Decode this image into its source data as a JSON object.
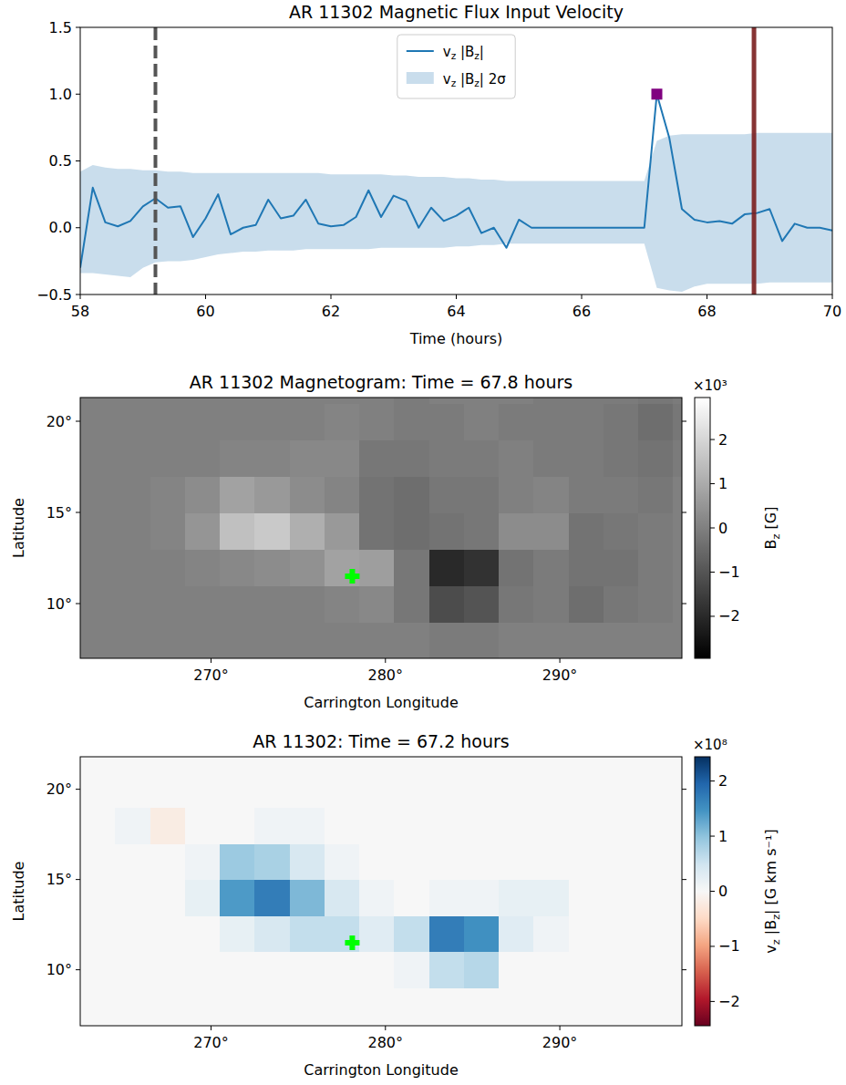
{
  "chart_data": [
    {
      "type": "line",
      "title": "AR 11302 Magnetic Flux Input Velocity",
      "xlabel": "Time (hours)",
      "x": [
        58,
        58.2,
        58.4,
        58.6,
        58.8,
        59,
        59.2,
        59.4,
        59.6,
        59.8,
        60,
        60.2,
        60.4,
        60.6,
        60.8,
        61,
        61.2,
        61.4,
        61.6,
        61.8,
        62,
        62.2,
        62.4,
        62.6,
        62.8,
        63,
        63.2,
        63.4,
        63.6,
        63.8,
        64,
        64.2,
        64.4,
        64.6,
        64.8,
        65,
        65.2,
        65.4,
        65.6,
        65.8,
        66,
        66.2,
        66.4,
        66.6,
        66.8,
        67,
        67.2,
        67.4,
        67.6,
        67.8,
        68,
        68.2,
        68.4,
        68.6,
        68.8,
        69,
        69.2,
        69.4,
        69.6,
        69.8,
        70
      ],
      "xlim": [
        58,
        70
      ],
      "ylim": [
        -0.5,
        1.5
      ],
      "xticks": [
        58,
        60,
        62,
        64,
        66,
        68,
        70
      ],
      "yticks": [
        {
          "value": -0.5,
          "label": "−0.5"
        },
        {
          "value": 0,
          "label": "0.0"
        },
        {
          "value": 0.5,
          "label": "0.5"
        },
        {
          "value": 1,
          "label": "1.0"
        },
        {
          "value": 1.5,
          "label": "1.5"
        }
      ],
      "grid": false,
      "legend": "upper center",
      "series": [
        {
          "name": "vz |Bz|",
          "type": "line",
          "color": "#1f77b4",
          "values": [
            -0.3,
            0.3,
            0.04,
            0.01,
            0.05,
            0.16,
            0.22,
            0.15,
            0.16,
            -0.07,
            0.07,
            0.25,
            -0.05,
            0,
            0.02,
            0.21,
            0.07,
            0.09,
            0.21,
            0.03,
            0.01,
            0.02,
            0.08,
            0.28,
            0.08,
            0.24,
            0.2,
            0,
            0.15,
            0.05,
            0.09,
            0.15,
            -0.04,
            0,
            -0.15,
            0.06,
            0,
            0,
            0,
            0,
            0,
            0,
            0,
            0,
            0,
            0,
            1,
            0.67,
            0.14,
            0.06,
            0.04,
            0.05,
            0.03,
            0.1,
            0.11,
            0.14,
            -0.1,
            0.03,
            0,
            0,
            -0.02
          ]
        },
        {
          "name": "vz |Bz| 2σ",
          "type": "band",
          "color": "#c9ddec",
          "upper": [
            0.42,
            0.47,
            0.45,
            0.44,
            0.44,
            0.43,
            0.43,
            0.42,
            0.42,
            0.41,
            0.41,
            0.41,
            0.41,
            0.41,
            0.41,
            0.41,
            0.41,
            0.41,
            0.41,
            0.41,
            0.4,
            0.4,
            0.4,
            0.4,
            0.4,
            0.39,
            0.39,
            0.38,
            0.38,
            0.38,
            0.37,
            0.37,
            0.36,
            0.36,
            0.35,
            0.35,
            0.35,
            0.35,
            0.35,
            0.35,
            0.35,
            0.35,
            0.35,
            0.35,
            0.35,
            0.35,
            0.65,
            0.69,
            0.7,
            0.7,
            0.7,
            0.7,
            0.7,
            0.7,
            0.71,
            0.71,
            0.71,
            0.71,
            0.71,
            0.71,
            0.71
          ],
          "lower": [
            -0.34,
            -0.34,
            -0.35,
            -0.36,
            -0.37,
            -0.3,
            -0.26,
            -0.25,
            -0.25,
            -0.24,
            -0.22,
            -0.2,
            -0.19,
            -0.18,
            -0.18,
            -0.17,
            -0.17,
            -0.17,
            -0.16,
            -0.16,
            -0.16,
            -0.16,
            -0.16,
            -0.16,
            -0.15,
            -0.15,
            -0.15,
            -0.15,
            -0.15,
            -0.15,
            -0.14,
            -0.14,
            -0.13,
            -0.13,
            -0.12,
            -0.12,
            -0.12,
            -0.12,
            -0.12,
            -0.12,
            -0.12,
            -0.12,
            -0.12,
            -0.12,
            -0.12,
            -0.12,
            -0.45,
            -0.47,
            -0.48,
            -0.44,
            -0.42,
            -0.42,
            -0.42,
            -0.42,
            -0.42,
            -0.41,
            -0.41,
            -0.41,
            -0.41,
            -0.41,
            -0.41
          ]
        },
        {
          "type": "scatter",
          "marker": "square",
          "color": "#800080",
          "x": [
            67.2
          ],
          "values": [
            1
          ]
        }
      ],
      "vlines": [
        {
          "value": 59.2,
          "color": "#555555",
          "line_style": "dashed"
        },
        {
          "value": 68.75,
          "color": "#7a1e1e",
          "line_style": "solid"
        }
      ]
    },
    {
      "type": "heatmap",
      "title": "AR 11302 Magnetogram: Time = 67.8 hours",
      "xlabel": "Carrington Longitude",
      "ylabel": "Latitude",
      "xlim": [
        262.5,
        297
      ],
      "ylim": [
        7,
        21.3
      ],
      "xticks": [
        {
          "value": 270,
          "label": "270°"
        },
        {
          "value": 280,
          "label": "280°"
        },
        {
          "value": 290,
          "label": "290°"
        }
      ],
      "yticks": [
        {
          "value": 10,
          "label": "10°"
        },
        {
          "value": 15,
          "label": "15°"
        },
        {
          "value": 20,
          "label": "20°"
        }
      ],
      "color": "gray",
      "x_edges": [
        262.5,
        264.5,
        266.5,
        268.5,
        270.5,
        272.5,
        274.5,
        276.5,
        278.5,
        280.5,
        282.5,
        284.5,
        286.5,
        288.5,
        290.5,
        292.5,
        294.5,
        296.5,
        297
      ],
      "y_edges": [
        7,
        9,
        11,
        13,
        15,
        17,
        19,
        21,
        21.3
      ],
      "z": [
        [
          0,
          0,
          0,
          0,
          0,
          0,
          0,
          0,
          0,
          0,
          -100,
          -100,
          0,
          0,
          0,
          0,
          0,
          0
        ],
        [
          0,
          0,
          0,
          0,
          0,
          0,
          0,
          100,
          200,
          -200,
          -1200,
          -1000,
          -200,
          -100,
          -400,
          -200,
          -100,
          0
        ],
        [
          0,
          0,
          0,
          100,
          200,
          300,
          400,
          800,
          700,
          -200,
          -2000,
          -1800,
          -300,
          -100,
          -300,
          -300,
          -100,
          0
        ],
        [
          0,
          0,
          100,
          500,
          1500,
          1700,
          1100,
          600,
          -300,
          -400,
          -300,
          -200,
          300,
          300,
          -300,
          -200,
          -100,
          0
        ],
        [
          0,
          0,
          100,
          300,
          800,
          600,
          300,
          100,
          -300,
          -400,
          -200,
          -200,
          0,
          100,
          -100,
          -100,
          -200,
          0
        ],
        [
          0,
          0,
          0,
          0,
          100,
          100,
          200,
          200,
          -200,
          -200,
          -100,
          -100,
          0,
          -100,
          -100,
          -200,
          -300,
          -100
        ],
        [
          0,
          0,
          0,
          0,
          0,
          0,
          0,
          100,
          0,
          -100,
          -100,
          0,
          -100,
          -100,
          -100,
          -200,
          -400,
          -200
        ],
        [
          0,
          0,
          0,
          0,
          0,
          0,
          0,
          0,
          0,
          -100,
          0,
          0,
          0,
          -100,
          -100,
          -100,
          -200,
          -100
        ]
      ],
      "colorbar": {
        "label": "Bz  [G]",
        "offset_label": "×10³",
        "range": [
          -2950,
          2950
        ],
        "ticks": [
          {
            "value": -2000,
            "label": "−2"
          },
          {
            "value": -1000,
            "label": "−1"
          },
          {
            "value": 0,
            "label": "0"
          },
          {
            "value": 1000,
            "label": "1"
          },
          {
            "value": 2000,
            "label": "2"
          }
        ]
      },
      "points": [
        {
          "x": 278.1,
          "y": 11.5,
          "color": "#00ff00",
          "marker": "plus"
        }
      ]
    },
    {
      "type": "heatmap",
      "title": "AR 11302: Time = 67.2 hours",
      "xlabel": "Carrington Longitude",
      "ylabel": "Latitude",
      "xlim": [
        262.5,
        297
      ],
      "ylim": [
        6.9,
        21.8
      ],
      "xticks": [
        {
          "value": 270,
          "label": "270°"
        },
        {
          "value": 280,
          "label": "280°"
        },
        {
          "value": 290,
          "label": "290°"
        }
      ],
      "yticks": [
        {
          "value": 10,
          "label": "10°"
        },
        {
          "value": 15,
          "label": "15°"
        },
        {
          "value": 20,
          "label": "20°"
        }
      ],
      "color": "RdBu",
      "x_edges": [
        262.5,
        264.5,
        266.5,
        268.5,
        270.5,
        272.5,
        274.5,
        276.5,
        278.5,
        280.5,
        282.5,
        284.5,
        286.5,
        288.5,
        290.5,
        292.5,
        294.5,
        296.5,
        297
      ],
      "y_edges": [
        6.9,
        9,
        11,
        13,
        15,
        17,
        19,
        21,
        21.8
      ],
      "z": [
        [
          0,
          0,
          0,
          0,
          0,
          0,
          0,
          0,
          0,
          0,
          0,
          0,
          0,
          0,
          0,
          0,
          0,
          0
        ],
        [
          0,
          0,
          0,
          0,
          0,
          0,
          0,
          0,
          0,
          10000000,
          60000000,
          70000000,
          0,
          0,
          0,
          0,
          0,
          0
        ],
        [
          0,
          0,
          0,
          0,
          20000000,
          40000000,
          60000000,
          60000000,
          30000000,
          60000000,
          170000000,
          150000000,
          30000000,
          10000000,
          0,
          0,
          0,
          0
        ],
        [
          0,
          0,
          0,
          20000000,
          140000000,
          170000000,
          110000000,
          40000000,
          10000000,
          0,
          10000000,
          10000000,
          20000000,
          20000000,
          0,
          0,
          0,
          0
        ],
        [
          0,
          0,
          0,
          10000000,
          90000000,
          80000000,
          40000000,
          10000000,
          0,
          0,
          0,
          0,
          0,
          0,
          0,
          0,
          0,
          0
        ],
        [
          0,
          10000000,
          -20000000,
          0,
          0,
          10000000,
          10000000,
          0,
          0,
          0,
          0,
          0,
          0,
          0,
          0,
          0,
          0,
          0
        ],
        [
          0,
          0,
          0,
          0,
          0,
          0,
          0,
          0,
          0,
          0,
          0,
          0,
          0,
          0,
          0,
          0,
          0,
          0
        ],
        [
          0,
          0,
          0,
          0,
          0,
          0,
          0,
          0,
          0,
          0,
          0,
          0,
          0,
          0,
          0,
          0,
          0,
          0
        ]
      ],
      "colorbar": {
        "label": "vz |Bz|  [G km s⁻¹]",
        "offset_label": "×10⁸",
        "range": [
          -244000000,
          244000000
        ],
        "ticks": [
          {
            "value": -200000000,
            "label": "−2"
          },
          {
            "value": -100000000,
            "label": "−1"
          },
          {
            "value": 0,
            "label": "0"
          },
          {
            "value": 100000000,
            "label": "1"
          },
          {
            "value": 200000000,
            "label": "2"
          }
        ]
      },
      "points": [
        {
          "x": 278.1,
          "y": 11.5,
          "color": "#00ff00",
          "marker": "plus"
        }
      ]
    }
  ]
}
